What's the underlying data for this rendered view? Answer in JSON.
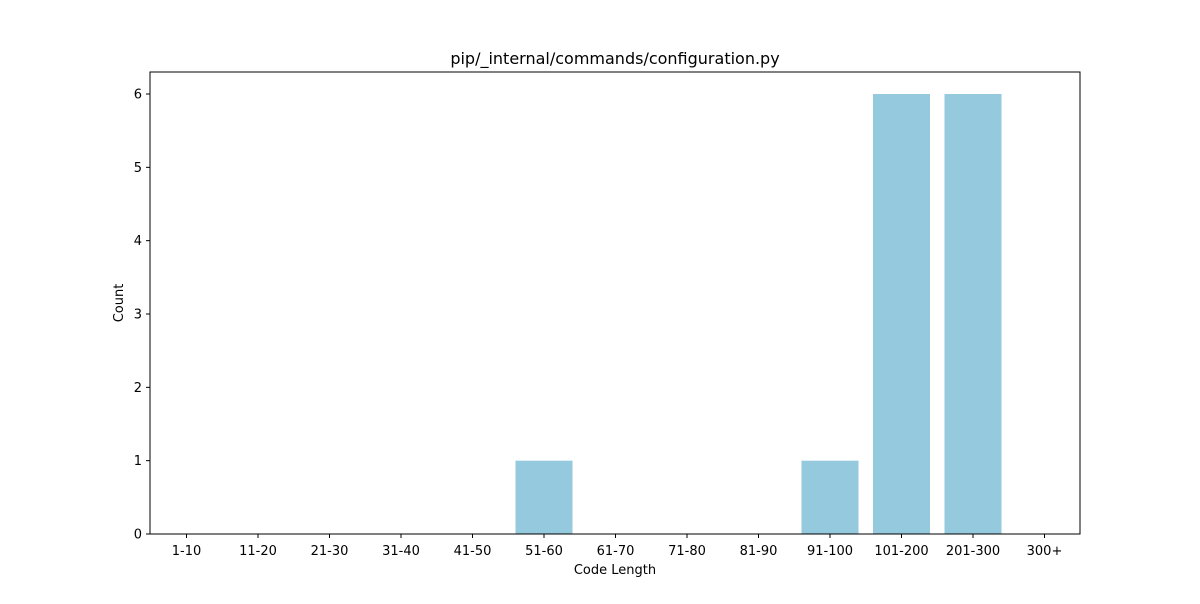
{
  "chart_data": {
    "type": "bar",
    "title": "pip/_internal/commands/configuration.py",
    "xlabel": "Code Length",
    "ylabel": "Count",
    "categories": [
      "1-10",
      "11-20",
      "21-30",
      "31-40",
      "41-50",
      "51-60",
      "61-70",
      "71-80",
      "81-90",
      "91-100",
      "101-200",
      "201-300",
      "300+"
    ],
    "values": [
      0,
      0,
      0,
      0,
      0,
      1,
      0,
      0,
      0,
      1,
      6,
      6,
      0
    ],
    "ylim": [
      0,
      6.3
    ],
    "yticks": [
      "0",
      "1",
      "2",
      "3",
      "4",
      "5",
      "6"
    ],
    "grid": false,
    "bar_color": "#95c9de"
  }
}
